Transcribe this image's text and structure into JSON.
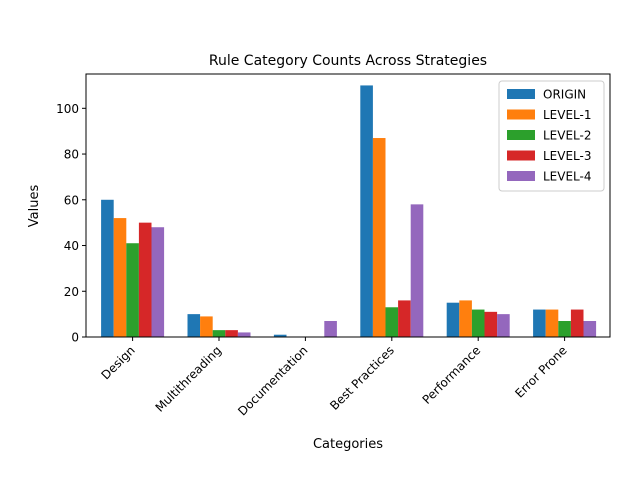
{
  "chart_data": {
    "type": "bar",
    "title": "Rule Category Counts Across Strategies",
    "xlabel": "Categories",
    "ylabel": "Values",
    "ylim": [
      0,
      115
    ],
    "yticks": [
      0,
      20,
      40,
      60,
      80,
      100
    ],
    "grid": false,
    "legend_position": "top-right",
    "categories": [
      "Design",
      "Multithreading",
      "Documentation",
      "Best Practices",
      "Performance",
      "Error Prone"
    ],
    "series": [
      {
        "name": "ORIGIN",
        "color": "#1f77b4",
        "values": [
          60,
          10,
          1,
          110,
          15,
          12
        ]
      },
      {
        "name": "LEVEL-1",
        "color": "#ff7f0e",
        "values": [
          52,
          9,
          0,
          87,
          16,
          12
        ]
      },
      {
        "name": "LEVEL-2",
        "color": "#2ca02c",
        "values": [
          41,
          3,
          0,
          13,
          12,
          7
        ]
      },
      {
        "name": "LEVEL-3",
        "color": "#d62728",
        "values": [
          50,
          3,
          0,
          16,
          11,
          12
        ]
      },
      {
        "name": "LEVEL-4",
        "color": "#9467bd",
        "values": [
          48,
          2,
          7,
          58,
          10,
          7
        ]
      }
    ]
  }
}
